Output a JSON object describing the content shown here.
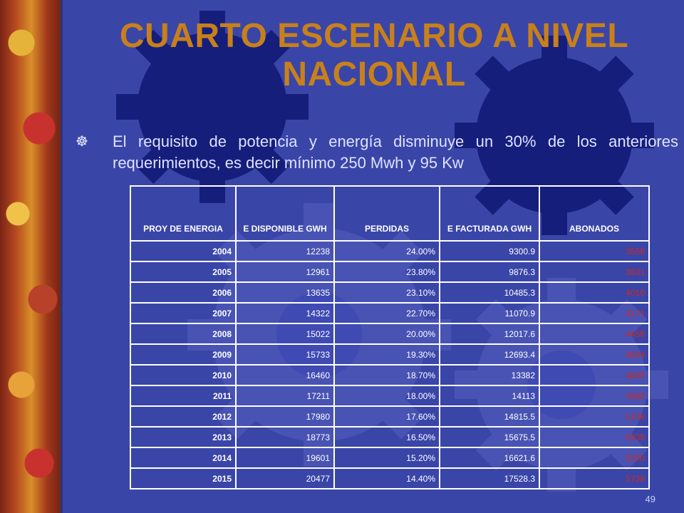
{
  "slide": {
    "title": "CUARTO ESCENARIO A NIVEL NACIONAL",
    "bullet_text": "El requisito de potencia y energía disminuye un 30%  de los anteriores requerimientos, es decir mínimo 250 Mwh y 95 Kw",
    "bullet_icon": "wheel-bullet-icon",
    "page_number": "49"
  },
  "table": {
    "headers": [
      "PROY DE ENERGIA",
      "E DISPONIBLE GWH",
      "PERDIDAS",
      "E FACTURADA GWH",
      "ABONADOS"
    ],
    "rows": [
      [
        "2004",
        "12238",
        "24.00%",
        "9300.9",
        "3558"
      ],
      [
        "2005",
        "12961",
        "23.80%",
        "9876.3",
        "3831"
      ],
      [
        "2006",
        "13635",
        "23.10%",
        "10485.3",
        "4010"
      ],
      [
        "2007",
        "14322",
        "22.70%",
        "11070.9",
        "4171"
      ],
      [
        "2008",
        "15022",
        "20.00%",
        "12017.6",
        "4458"
      ],
      [
        "2009",
        "15733",
        "19.30%",
        "12693.4",
        "4634"
      ],
      [
        "2010",
        "16460",
        "18.70%",
        "13382",
        "4805"
      ],
      [
        "2011",
        "17211",
        "18.00%",
        "14113",
        "4980"
      ],
      [
        "2012",
        "17980",
        "17.60%",
        "14815.5",
        "5136"
      ],
      [
        "2013",
        "18773",
        "16.50%",
        "15675.5",
        "5335"
      ],
      [
        "2014",
        "19601",
        "15.20%",
        "16621.6",
        "5550"
      ],
      [
        "2015",
        "20477",
        "14.40%",
        "17528.3",
        "5739"
      ]
    ]
  },
  "colors": {
    "background": "#3a45a8",
    "title": "#c8801a",
    "abonados_text": "#d2281c"
  }
}
